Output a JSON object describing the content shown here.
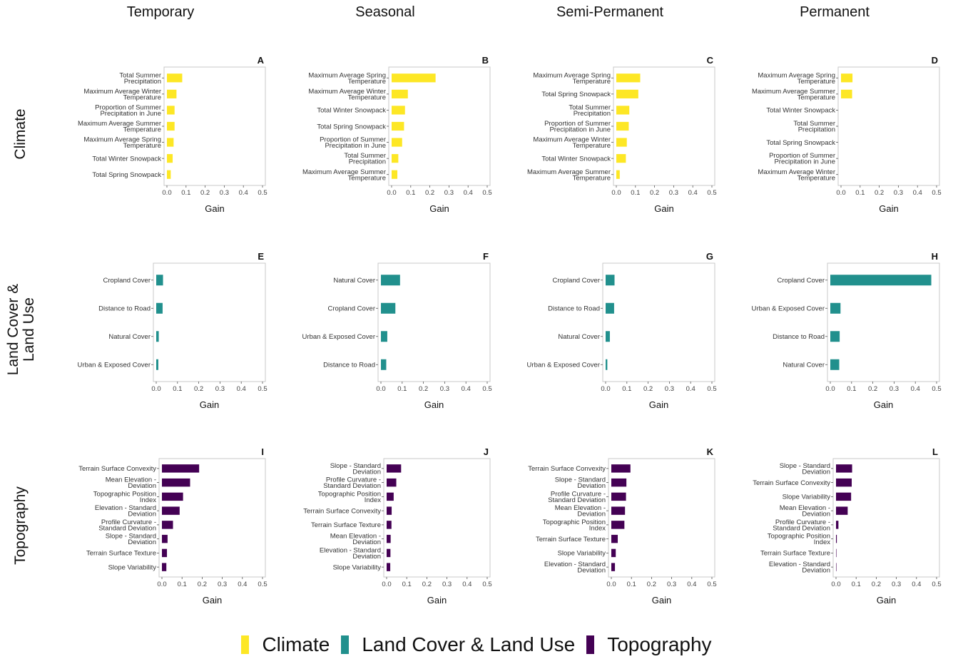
{
  "column_titles": [
    "Temporary",
    "Seasonal",
    "Semi-Permanent",
    "Permanent"
  ],
  "row_titles": [
    "Climate",
    "Land Cover &\nLand Use",
    "Topography"
  ],
  "legend": [
    {
      "label": "Climate",
      "color": "#fde725"
    },
    {
      "label": "Land Cover & Land Use",
      "color": "#21908d"
    },
    {
      "label": "Topography",
      "color": "#440154"
    }
  ],
  "chart_data": [
    {
      "panel": "A",
      "type": "bar",
      "orientation": "horizontal",
      "color": "#fde725",
      "xlabel": "Gain",
      "xlim": [
        0,
        0.5
      ],
      "xticks": [
        "0.0",
        "0.1",
        "0.2",
        "0.3",
        "0.4",
        "0.5"
      ],
      "categories": [
        "Total Summer\nPrecipitation",
        "Maximum Average Winter\nTemperature",
        "Proportion of Summer\nPrecipitation in June",
        "Maximum Average Summer\nTemperature",
        "Maximum Average Spring\nTemperature",
        "Total Winter Snowpack",
        "Total Spring Snowpack"
      ],
      "values": [
        0.08,
        0.05,
        0.04,
        0.04,
        0.035,
        0.03,
        0.02
      ]
    },
    {
      "panel": "B",
      "type": "bar",
      "orientation": "horizontal",
      "color": "#fde725",
      "xlabel": "Gain",
      "xlim": [
        0,
        0.5
      ],
      "xticks": [
        "0.0",
        "0.1",
        "0.2",
        "0.3",
        "0.4",
        "0.5"
      ],
      "categories": [
        "Maximum Average Spring\nTemperature",
        "Maximum Average Winter\nTemperature",
        "Total Winter Snowpack",
        "Total Spring Snowpack",
        "Proportion of Summer\nPrecipitation in June",
        "Total Summer\nPrecipitation",
        "Maximum Average Summer\nTemperature"
      ],
      "values": [
        0.23,
        0.085,
        0.07,
        0.065,
        0.055,
        0.035,
        0.03
      ]
    },
    {
      "panel": "C",
      "type": "bar",
      "orientation": "horizontal",
      "color": "#fde725",
      "xlabel": "Gain",
      "xlim": [
        0,
        0.5
      ],
      "xticks": [
        "0.0",
        "0.1",
        "0.2",
        "0.3",
        "0.4",
        "0.5"
      ],
      "categories": [
        "Maximum Average Spring\nTemperature",
        "Total Spring Snowpack",
        "Total Summer\nPrecipitation",
        "Proportion of Summer\nPrecipitation in June",
        "Maximum Average Winter\nTemperature",
        "Total Winter Snowpack",
        "Maximum Average Summer\nTemperature"
      ],
      "values": [
        0.125,
        0.115,
        0.068,
        0.065,
        0.055,
        0.05,
        0.018
      ]
    },
    {
      "panel": "D",
      "type": "bar",
      "orientation": "horizontal",
      "color": "#fde725",
      "xlabel": "Gain",
      "xlim": [
        0,
        0.5
      ],
      "xticks": [
        "0.0",
        "0.1",
        "0.2",
        "0.3",
        "0.4",
        "0.5"
      ],
      "categories": [
        "Maximum Average Spring\nTemperature",
        "Maximum Average Summer\nTemperature",
        "Total Winter Snowpack",
        "Total Summer\nPrecipitation",
        "Total Spring Snowpack",
        "Proportion of Summer\nPrecipitation in June",
        "Maximum Average Winter\nTemperature"
      ],
      "values": [
        0.06,
        0.058,
        0,
        0,
        0,
        0,
        0
      ]
    },
    {
      "panel": "E",
      "type": "bar",
      "orientation": "horizontal",
      "color": "#21908d",
      "xlabel": "Gain",
      "xlim": [
        0,
        0.5
      ],
      "xticks": [
        "0.0",
        "0.1",
        "0.2",
        "0.3",
        "0.4",
        "0.5"
      ],
      "categories": [
        "Cropland Cover",
        "Distance to Road",
        "Natural Cover",
        "Urban & Exposed Cover"
      ],
      "values": [
        0.032,
        0.03,
        0.012,
        0.01
      ]
    },
    {
      "panel": "F",
      "type": "bar",
      "orientation": "horizontal",
      "color": "#21908d",
      "xlabel": "Gain",
      "xlim": [
        0,
        0.5
      ],
      "xticks": [
        "0.0",
        "0.1",
        "0.2",
        "0.3",
        "0.4",
        "0.5"
      ],
      "categories": [
        "Natural Cover",
        "Cropland Cover",
        "Urban & Exposed Cover",
        "Distance to Road"
      ],
      "values": [
        0.09,
        0.068,
        0.03,
        0.025
      ]
    },
    {
      "panel": "G",
      "type": "bar",
      "orientation": "horizontal",
      "color": "#21908d",
      "xlabel": "Gain",
      "xlim": [
        0,
        0.5
      ],
      "xticks": [
        "0.0",
        "0.1",
        "0.2",
        "0.3",
        "0.4",
        "0.5"
      ],
      "categories": [
        "Cropland Cover",
        "Distance to Road",
        "Natural Cover",
        "Urban & Exposed Cover"
      ],
      "values": [
        0.042,
        0.04,
        0.02,
        0.008
      ]
    },
    {
      "panel": "H",
      "type": "bar",
      "orientation": "horizontal",
      "color": "#21908d",
      "xlabel": "Gain",
      "xlim": [
        0,
        0.5
      ],
      "xticks": [
        "0.0",
        "0.1",
        "0.2",
        "0.3",
        "0.4",
        "0.5"
      ],
      "categories": [
        "Cropland Cover",
        "Urban & Exposed Cover",
        "Distance to Road",
        "Natural Cover"
      ],
      "values": [
        0.475,
        0.048,
        0.044,
        0.042
      ]
    },
    {
      "panel": "I",
      "type": "bar",
      "orientation": "horizontal",
      "color": "#440154",
      "xlabel": "Gain",
      "xlim": [
        0,
        0.5
      ],
      "xticks": [
        "0.0",
        "0.1",
        "0.2",
        "0.3",
        "0.4",
        "0.5"
      ],
      "categories": [
        "Terrain Surface Convexity",
        "Mean Elevation -\nDeviation",
        "Topographic Position\nIndex",
        "Elevation - Standard\nDeviation",
        "Profile Curvature -\nStandard Deviation",
        "Slope - Standard\nDeviation",
        "Terrain Surface Texture",
        "Slope Variability"
      ],
      "values": [
        0.185,
        0.14,
        0.105,
        0.088,
        0.055,
        0.028,
        0.025,
        0.022
      ]
    },
    {
      "panel": "J",
      "type": "bar",
      "orientation": "horizontal",
      "color": "#440154",
      "xlabel": "Gain",
      "xlim": [
        0,
        0.5
      ],
      "xticks": [
        "0.0",
        "0.1",
        "0.2",
        "0.3",
        "0.4",
        "0.5"
      ],
      "categories": [
        "Slope - Standard\nDeviation",
        "Profile Curvature -\nStandard Deviation",
        "Topographic Position\nIndex",
        "Terrain Surface Convexity",
        "Terrain Surface Texture",
        "Mean Elevation -\nDeviation",
        "Elevation - Standard\nDeviation",
        "Slope Variability"
      ],
      "values": [
        0.072,
        0.048,
        0.035,
        0.025,
        0.024,
        0.02,
        0.019,
        0.018
      ]
    },
    {
      "panel": "K",
      "type": "bar",
      "orientation": "horizontal",
      "color": "#440154",
      "xlabel": "Gain",
      "xlim": [
        0,
        0.5
      ],
      "xticks": [
        "0.0",
        "0.1",
        "0.2",
        "0.3",
        "0.4",
        "0.5"
      ],
      "categories": [
        "Terrain Surface Convexity",
        "Slope - Standard\nDeviation",
        "Profile Curvature -\nStandard Deviation",
        "Mean Elevation -\nDeviation",
        "Topographic Position\nIndex",
        "Terrain Surface Texture",
        "Slope Variability",
        "Elevation - Standard\nDeviation"
      ],
      "values": [
        0.095,
        0.075,
        0.073,
        0.068,
        0.065,
        0.032,
        0.022,
        0.018
      ]
    },
    {
      "panel": "L",
      "type": "bar",
      "orientation": "horizontal",
      "color": "#440154",
      "xlabel": "Gain",
      "xlim": [
        0,
        0.5
      ],
      "xticks": [
        "0.0",
        "0.1",
        "0.2",
        "0.3",
        "0.4",
        "0.5"
      ],
      "categories": [
        "Slope - Standard\nDeviation",
        "Terrain Surface Convexity",
        "Slope Variability",
        "Mean Elevation -\nDeviation",
        "Profile Curvature -\nStandard Deviation",
        "Topographic Position\nIndex",
        "Terrain Surface Texture",
        "Elevation - Standard\nDeviation"
      ],
      "values": [
        0.08,
        0.078,
        0.075,
        0.058,
        0.012,
        0.004,
        0.002,
        0.002
      ]
    }
  ]
}
